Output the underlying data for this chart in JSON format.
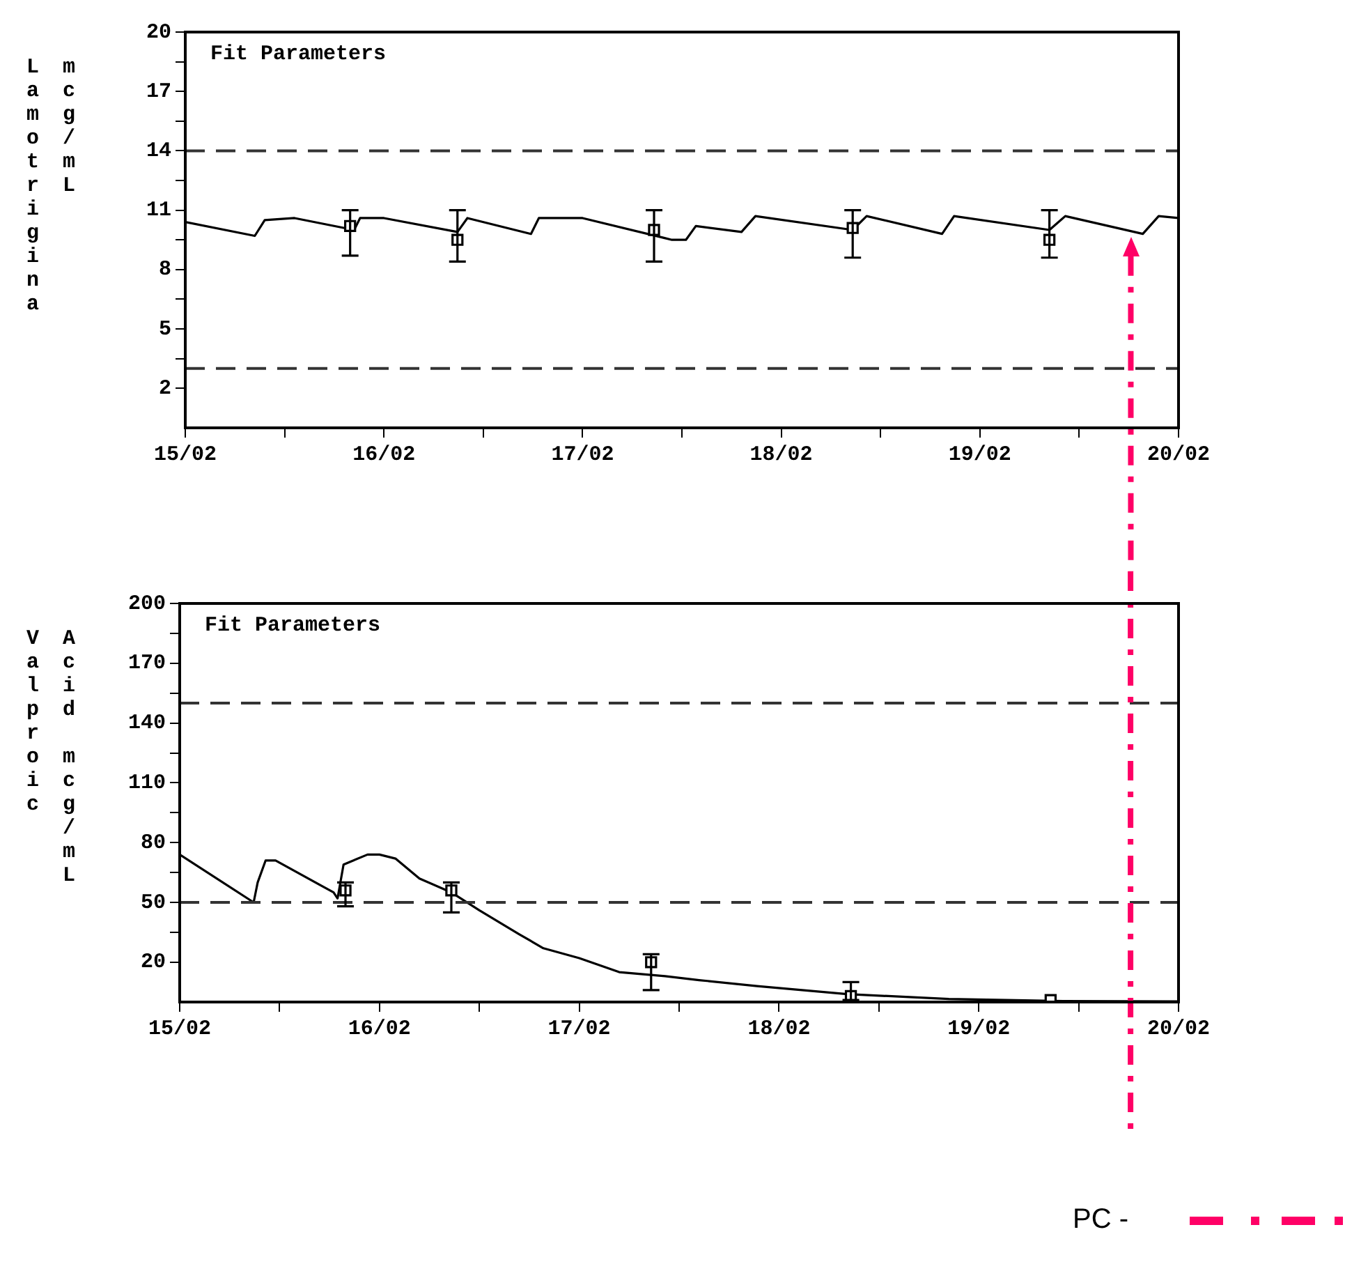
{
  "chart_data": [
    {
      "type": "line",
      "title": "Fit Parameters",
      "ylabel": "Lamotrigina mcg/mL",
      "xlim": [
        "--02-15",
        "--02-20"
      ],
      "xticks": [
        {
          "value": "--02-15",
          "label": "15/02"
        },
        {
          "value": "--02-15T12:00",
          "label": null
        },
        {
          "value": "--02-16",
          "label": "16/02"
        },
        {
          "value": "--02-16T12:00",
          "label": null
        },
        {
          "value": "--02-17",
          "label": "17/02"
        },
        {
          "value": "--02-17T12:00",
          "label": null
        },
        {
          "value": "--02-18",
          "label": "18/02"
        },
        {
          "value": "--02-18T12:00",
          "label": null
        },
        {
          "value": "--02-19",
          "label": "19/02"
        },
        {
          "value": "--02-19T12:00",
          "label": null
        },
        {
          "value": "--02-20",
          "label": "20/02"
        }
      ],
      "ylim": [
        0,
        20
      ],
      "yticks": [
        2,
        {
          "value": 3.5,
          "label": null
        },
        5,
        {
          "value": 6.5,
          "label": null
        },
        8,
        {
          "value": 9.5,
          "label": null
        },
        11,
        {
          "value": 12.5,
          "label": null
        },
        14,
        {
          "value": 15.5,
          "label": null
        },
        17,
        {
          "value": 18.5,
          "label": null
        },
        20
      ],
      "grid": false,
      "series": [
        {
          "type": "line",
          "color": "#000000",
          "marker": "none",
          "x": [
            "--02-15",
            "--02-15T08:24",
            "--02-15T09:36",
            "--02-15T13:12",
            "--02-15T20:24",
            "--02-15T21:07",
            "--02-16",
            "--02-16T08:53",
            "--02-16T10:05",
            "--02-16T17:46",
            "--02-16T18:43",
            "--02-17",
            "--02-17T09:50",
            "--02-17T10:48",
            "--02-17T12:29",
            "--02-17T13:41",
            "--02-17T19:12",
            "--02-17T20:53",
            "--02-18T08:38",
            "--02-18T10:19",
            "--02-18T19:26",
            "--02-18T20:53",
            "--02-19T08:24",
            "--02-19T10:19",
            "--02-19T19:41",
            "--02-19T21:36",
            "--02-20"
          ],
          "values": [
            10.4,
            9.7,
            10.5,
            10.6,
            10.0,
            10.6,
            10.6,
            9.9,
            10.6,
            9.8,
            10.6,
            10.6,
            9.6,
            9.5,
            9.5,
            10.2,
            9.9,
            10.7,
            10.0,
            10.7,
            9.8,
            10.7,
            10.0,
            10.7,
            9.8,
            10.7,
            10.6
          ]
        },
        {
          "type": "scatter",
          "color": "#000000",
          "marker": "square",
          "x": [
            "--02-15T19:55",
            "--02-16T08:53",
            "--02-17T08:38",
            "--02-18T08:38",
            "--02-19T08:24"
          ],
          "values": [
            10.2,
            9.5,
            10.0,
            10.1,
            9.5
          ],
          "errors": [
            [
              8.7,
              11
            ],
            [
              8.4,
              11
            ],
            [
              8.4,
              11
            ],
            [
              8.6,
              11
            ],
            [
              8.6,
              11
            ]
          ]
        }
      ],
      "ref_lines": [
        {
          "axis": "y",
          "value": 14,
          "color": "#333333",
          "line_style": "dashed"
        },
        {
          "axis": "y",
          "value": 3,
          "color": "#333333",
          "line_style": "dashed"
        },
        {
          "axis": "x",
          "value": "--02-19T18:14",
          "color": "#ff0066",
          "line_style": "dashdot"
        }
      ]
    },
    {
      "type": "line",
      "title": "Fit Parameters",
      "ylabel": "Valproic Acid mcg/mL",
      "xlim": [
        "--02-15",
        "--02-20"
      ],
      "xticks": [
        {
          "value": "--02-15",
          "label": "15/02"
        },
        {
          "value": "--02-15T12:00",
          "label": null
        },
        {
          "value": "--02-16",
          "label": "16/02"
        },
        {
          "value": "--02-16T12:00",
          "label": null
        },
        {
          "value": "--02-17",
          "label": "17/02"
        },
        {
          "value": "--02-17T12:00",
          "label": null
        },
        {
          "value": "--02-18",
          "label": "18/02"
        },
        {
          "value": "--02-18T12:00",
          "label": null
        },
        {
          "value": "--02-19",
          "label": "19/02"
        },
        {
          "value": "--02-19T12:00",
          "label": null
        },
        {
          "value": "--02-20",
          "label": "20/02"
        }
      ],
      "ylim": [
        0,
        200
      ],
      "yticks": [
        20,
        {
          "value": 35,
          "label": null
        },
        50,
        {
          "value": 65,
          "label": null
        },
        80,
        {
          "value": 95,
          "label": null
        },
        110,
        {
          "value": 125,
          "label": null
        },
        140,
        {
          "value": 155,
          "label": null
        },
        170,
        {
          "value": 185,
          "label": null
        },
        200
      ],
      "grid": false,
      "series": [
        {
          "type": "line",
          "color": "#000000",
          "marker": "none",
          "x": [
            "--02-15",
            "--02-15T08:53",
            "--02-15T09:22",
            "--02-15T10:19",
            "--02-15T11:31",
            "--02-15T18:29",
            "--02-15T18:58",
            "--02-15T19:41",
            "--02-15T22:34",
            "--02-16",
            "--02-16T01:55",
            "--02-16T04:48",
            "--02-16T08:38",
            "--02-16T12:00",
            "--02-16T16:48",
            "--02-16T19:41",
            "--02-17",
            "--02-17T04:48",
            "--02-17T10:19",
            "--02-17T14:24",
            "--02-17T21:22",
            "--02-18T08:10",
            "--02-18T20:24",
            "--02-19T10:19",
            "--02-20"
          ],
          "values": [
            74,
            50,
            60,
            71,
            71,
            55,
            52,
            69,
            74,
            74,
            72,
            62,
            55,
            46,
            34,
            27,
            22,
            15,
            13,
            11,
            8,
            4,
            1.5,
            0.5,
            0.3
          ]
        },
        {
          "type": "scatter",
          "color": "#000000",
          "marker": "square",
          "x": [
            "--02-15T19:55",
            "--02-16T08:38",
            "--02-17T08:38",
            "--02-18T08:38",
            "--02-19T08:38"
          ],
          "values": [
            56,
            56,
            20,
            3,
            1
          ],
          "errors": [
            [
              48,
              60
            ],
            [
              45,
              60
            ],
            [
              6,
              24
            ],
            [
              1,
              10
            ],
            null
          ]
        }
      ],
      "ref_lines": [
        {
          "axis": "y",
          "value": 150,
          "color": "#333333",
          "line_style": "dashed"
        },
        {
          "axis": "y",
          "value": 50,
          "color": "#333333",
          "line_style": "dashed"
        },
        {
          "axis": "x",
          "value": "--02-19T18:14",
          "color": "#ff0066",
          "line_style": "dashdot",
          "label": "PC -"
        }
      ]
    }
  ]
}
